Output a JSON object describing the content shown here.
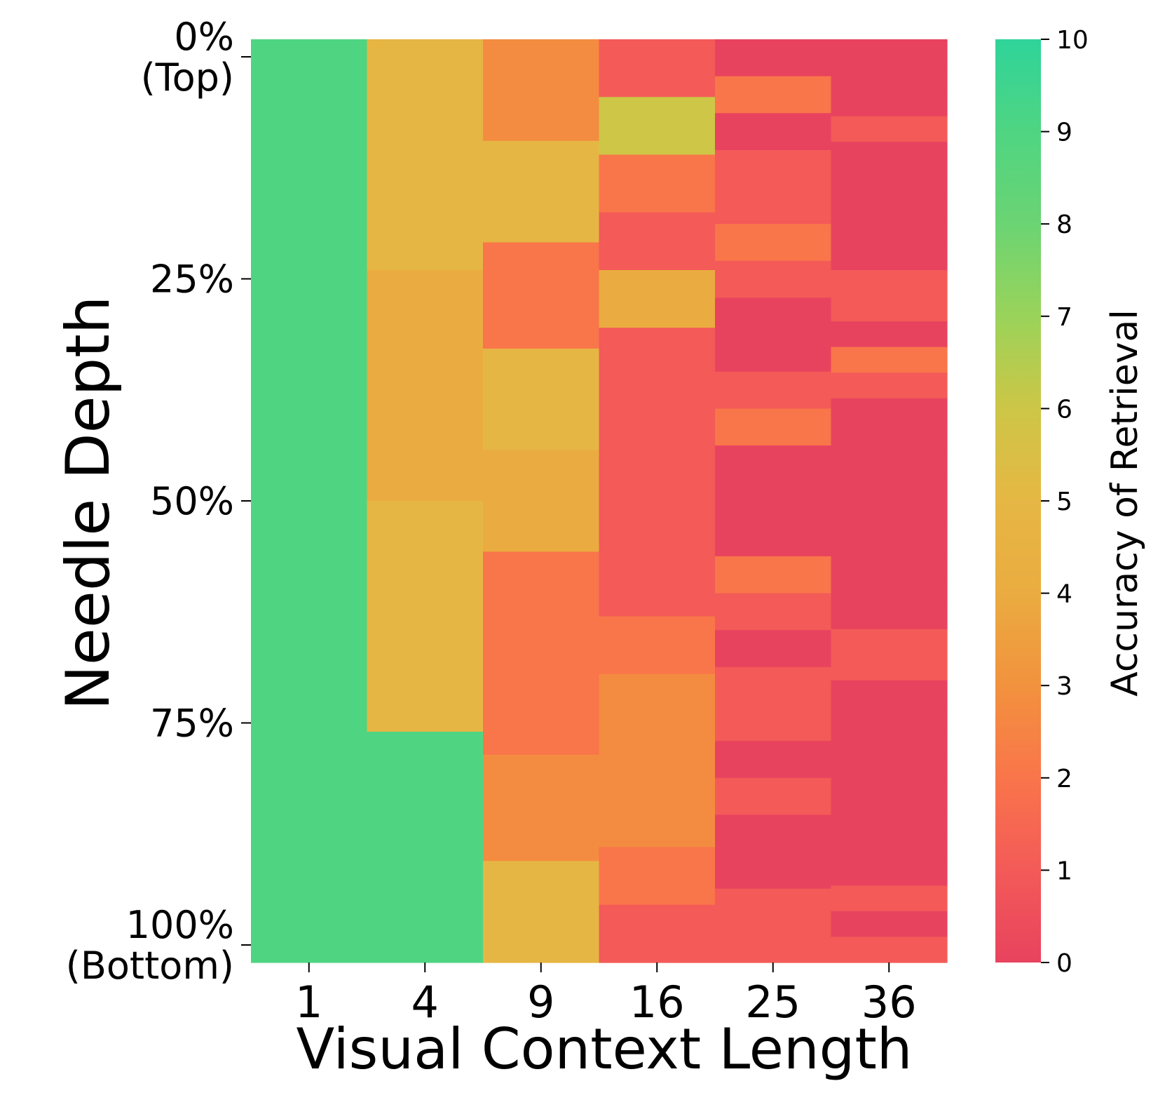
{
  "chart_data": {
    "type": "heatmap",
    "xlabel": "Visual Context Length",
    "ylabel": "Needle Depth",
    "x_categories": [
      "1",
      "4",
      "9",
      "16",
      "25",
      "36"
    ],
    "y_tick_labels": [
      {
        "lines": [
          "0%",
          "(Top)"
        ],
        "depth": 0
      },
      {
        "lines": [
          "25%"
        ],
        "depth": 25
      },
      {
        "lines": [
          "50%"
        ],
        "depth": 50
      },
      {
        "lines": [
          "75%"
        ],
        "depth": 75
      },
      {
        "lines": [
          "100%",
          "(Bottom)"
        ],
        "depth": 100
      }
    ],
    "colorbar": {
      "label": "Accuracy of Retrieval",
      "min": 0,
      "max": 10,
      "ticks": [
        "0",
        "1",
        "2",
        "3",
        "4",
        "5",
        "6",
        "7",
        "8",
        "9",
        "10"
      ],
      "colors": [
        "#e8435e",
        "#f35a58",
        "#f9754a",
        "#f2923e",
        "#eaac40",
        "#e6b744",
        "#cdc646",
        "#9ad35a",
        "#6bd473",
        "#4fd582",
        "#2fd49a"
      ]
    },
    "columns": [
      {
        "x": "1",
        "segments": [
          {
            "from": 0,
            "to": 100,
            "value": 9.0
          }
        ]
      },
      {
        "x": "4",
        "segments": [
          {
            "from": 0,
            "to": 25,
            "value": 4.9
          },
          {
            "from": 25,
            "to": 50,
            "value": 4.0
          },
          {
            "from": 50,
            "to": 75,
            "value": 4.9
          },
          {
            "from": 75,
            "to": 100,
            "value": 9.0
          }
        ]
      },
      {
        "x": "9",
        "segments": [
          {
            "from": 0,
            "to": 11,
            "value": 2.8
          },
          {
            "from": 11,
            "to": 22,
            "value": 4.9
          },
          {
            "from": 22,
            "to": 33.5,
            "value": 2.0
          },
          {
            "from": 33.5,
            "to": 44.5,
            "value": 4.9
          },
          {
            "from": 44.5,
            "to": 55.5,
            "value": 4.0
          },
          {
            "from": 55.5,
            "to": 77.5,
            "value": 2.0
          },
          {
            "from": 77.5,
            "to": 89,
            "value": 2.8
          },
          {
            "from": 89,
            "to": 100,
            "value": 4.9
          }
        ]
      },
      {
        "x": "16",
        "segments": [
          {
            "from": 0,
            "to": 6.25,
            "value": 1.0
          },
          {
            "from": 6.25,
            "to": 12.5,
            "value": 6.0
          },
          {
            "from": 12.5,
            "to": 18.75,
            "value": 2.0
          },
          {
            "from": 18.75,
            "to": 25,
            "value": 1.0
          },
          {
            "from": 25,
            "to": 31.25,
            "value": 4.0
          },
          {
            "from": 31.25,
            "to": 62.5,
            "value": 1.0
          },
          {
            "from": 62.5,
            "to": 68.75,
            "value": 2.0
          },
          {
            "from": 68.75,
            "to": 87.5,
            "value": 2.8
          },
          {
            "from": 87.5,
            "to": 93.75,
            "value": 2.0
          },
          {
            "from": 93.75,
            "to": 100,
            "value": 1.0
          }
        ]
      },
      {
        "x": "25",
        "segments": [
          {
            "from": 0,
            "to": 4,
            "value": 0.0
          },
          {
            "from": 4,
            "to": 8,
            "value": 2.0
          },
          {
            "from": 8,
            "to": 12,
            "value": 0.0
          },
          {
            "from": 12,
            "to": 16,
            "value": 1.0
          },
          {
            "from": 16,
            "to": 20,
            "value": 1.0
          },
          {
            "from": 20,
            "to": 24,
            "value": 2.0
          },
          {
            "from": 24,
            "to": 28,
            "value": 1.0
          },
          {
            "from": 28,
            "to": 32,
            "value": 0.0
          },
          {
            "from": 32,
            "to": 36,
            "value": 0.0
          },
          {
            "from": 36,
            "to": 40,
            "value": 1.0
          },
          {
            "from": 40,
            "to": 44,
            "value": 2.0
          },
          {
            "from": 44,
            "to": 48,
            "value": 0.0
          },
          {
            "from": 48,
            "to": 52,
            "value": 0.0
          },
          {
            "from": 52,
            "to": 56,
            "value": 0.0
          },
          {
            "from": 56,
            "to": 60,
            "value": 2.0
          },
          {
            "from": 60,
            "to": 64,
            "value": 1.0
          },
          {
            "from": 64,
            "to": 68,
            "value": 0.0
          },
          {
            "from": 68,
            "to": 72,
            "value": 1.0
          },
          {
            "from": 72,
            "to": 76,
            "value": 1.0
          },
          {
            "from": 76,
            "to": 80,
            "value": 0.0
          },
          {
            "from": 80,
            "to": 84,
            "value": 1.0
          },
          {
            "from": 84,
            "to": 88,
            "value": 0.0
          },
          {
            "from": 88,
            "to": 92,
            "value": 0.0
          },
          {
            "from": 92,
            "to": 96,
            "value": 1.0
          },
          {
            "from": 96,
            "to": 100,
            "value": 1.0
          }
        ]
      },
      {
        "x": "36",
        "segments": [
          {
            "from": 0,
            "to": 2.78,
            "value": 0.0
          },
          {
            "from": 2.78,
            "to": 5.56,
            "value": 0.0
          },
          {
            "from": 5.56,
            "to": 8.33,
            "value": 0.0
          },
          {
            "from": 8.33,
            "to": 11.11,
            "value": 1.0
          },
          {
            "from": 11.11,
            "to": 13.89,
            "value": 0.0
          },
          {
            "from": 13.89,
            "to": 16.67,
            "value": 0.0
          },
          {
            "from": 16.67,
            "to": 19.44,
            "value": 0.0
          },
          {
            "from": 19.44,
            "to": 22.22,
            "value": 0.0
          },
          {
            "from": 22.22,
            "to": 25.0,
            "value": 0.0
          },
          {
            "from": 25.0,
            "to": 27.78,
            "value": 1.0
          },
          {
            "from": 27.78,
            "to": 30.56,
            "value": 1.0
          },
          {
            "from": 30.56,
            "to": 33.33,
            "value": 0.0
          },
          {
            "from": 33.33,
            "to": 36.11,
            "value": 2.0
          },
          {
            "from": 36.11,
            "to": 38.89,
            "value": 1.0
          },
          {
            "from": 38.89,
            "to": 41.67,
            "value": 0.0
          },
          {
            "from": 41.67,
            "to": 44.44,
            "value": 0.0
          },
          {
            "from": 44.44,
            "to": 47.22,
            "value": 0.0
          },
          {
            "from": 47.22,
            "to": 50.0,
            "value": 0.0
          },
          {
            "from": 50.0,
            "to": 52.78,
            "value": 0.0
          },
          {
            "from": 52.78,
            "to": 55.56,
            "value": 0.0
          },
          {
            "from": 55.56,
            "to": 58.33,
            "value": 0.0
          },
          {
            "from": 58.33,
            "to": 61.11,
            "value": 0.0
          },
          {
            "from": 61.11,
            "to": 63.89,
            "value": 0.0
          },
          {
            "from": 63.89,
            "to": 66.67,
            "value": 1.0
          },
          {
            "from": 66.67,
            "to": 69.44,
            "value": 1.0
          },
          {
            "from": 69.44,
            "to": 72.22,
            "value": 0.0
          },
          {
            "from": 72.22,
            "to": 75.0,
            "value": 0.0
          },
          {
            "from": 75.0,
            "to": 77.78,
            "value": 0.0
          },
          {
            "from": 77.78,
            "to": 80.56,
            "value": 0.0
          },
          {
            "from": 80.56,
            "to": 83.33,
            "value": 0.0
          },
          {
            "from": 83.33,
            "to": 86.11,
            "value": 0.0
          },
          {
            "from": 86.11,
            "to": 88.89,
            "value": 0.0
          },
          {
            "from": 88.89,
            "to": 91.67,
            "value": 0.0
          },
          {
            "from": 91.67,
            "to": 94.44,
            "value": 1.0
          },
          {
            "from": 94.44,
            "to": 97.22,
            "value": 0.0
          },
          {
            "from": 97.22,
            "to": 100.0,
            "value": 1.0
          }
        ]
      }
    ]
  }
}
